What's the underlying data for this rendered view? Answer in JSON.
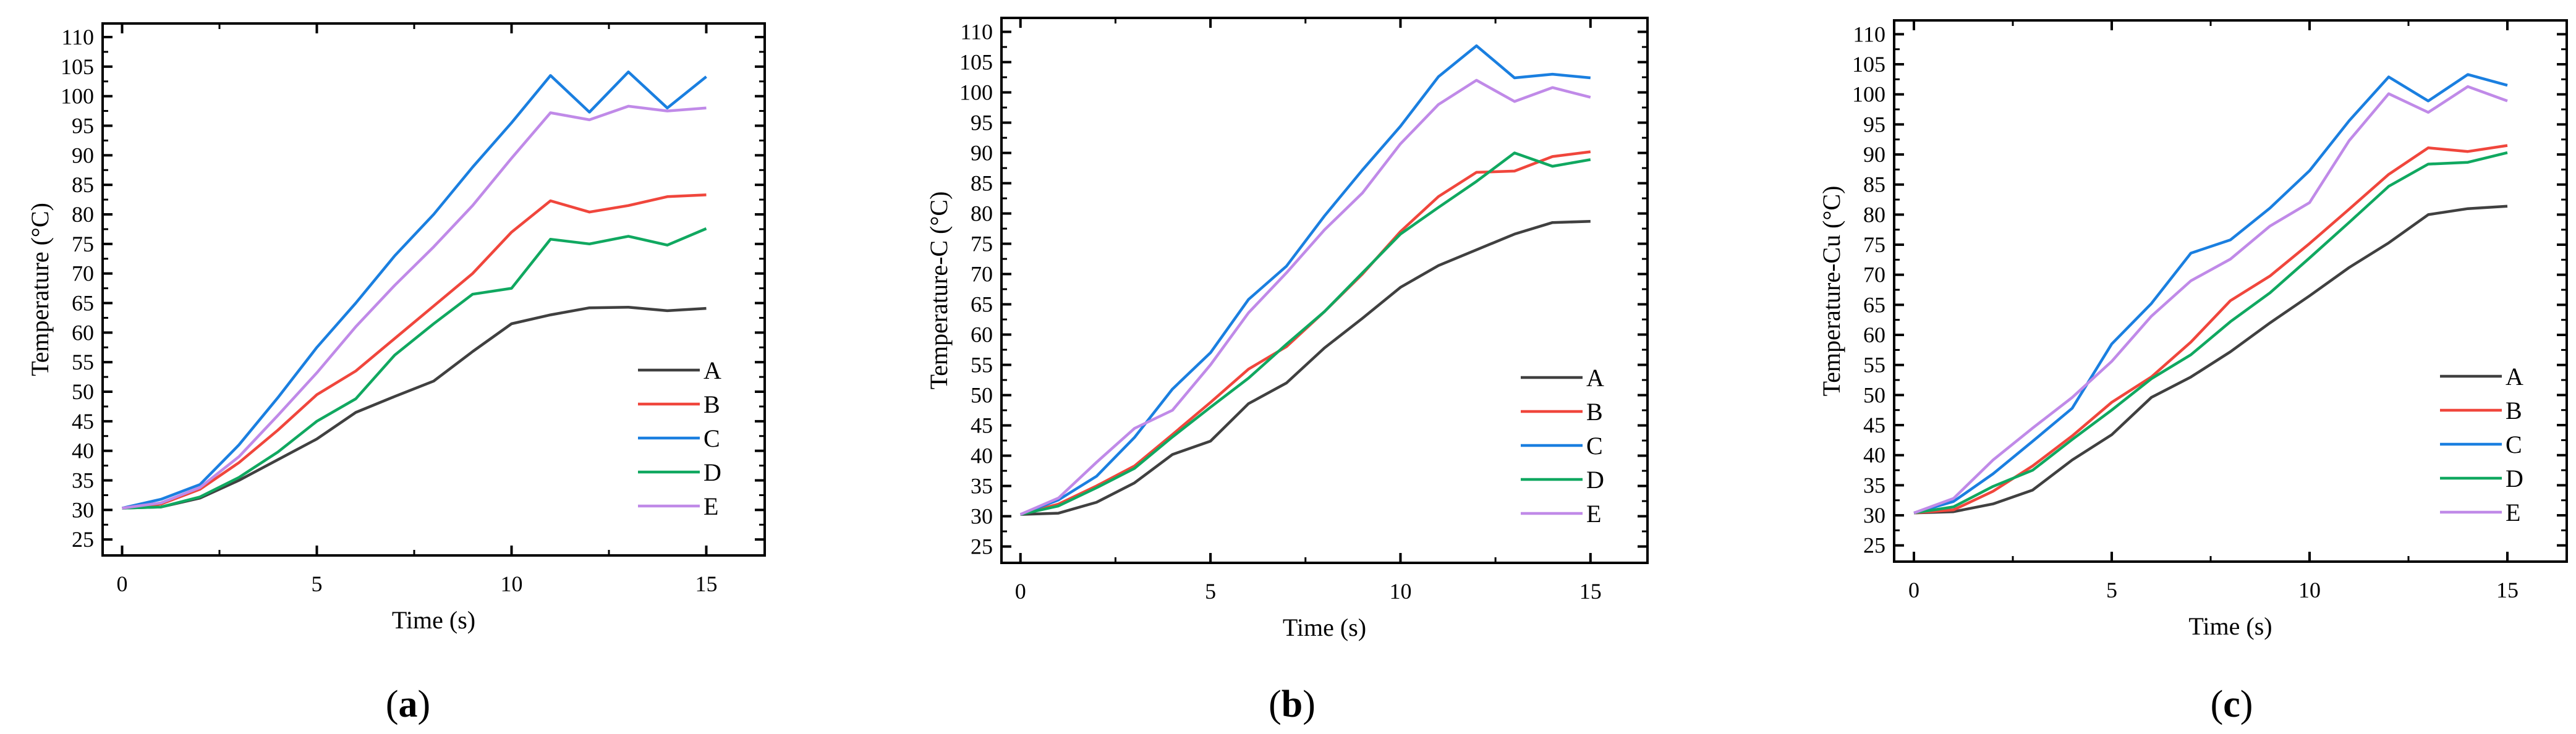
{
  "chart_data": [
    {
      "type": "line",
      "caption": "a",
      "xlabel": "Time (s)",
      "ylabel": "Temperature (°C)",
      "xlim": [
        -0.5,
        16.5
      ],
      "ylim": [
        22.3,
        112.3
      ],
      "xticks": [
        0,
        5,
        10,
        15
      ],
      "yticks": [
        25,
        30,
        35,
        40,
        45,
        50,
        55,
        60,
        65,
        70,
        75,
        80,
        85,
        90,
        95,
        100,
        105,
        110
      ],
      "legend": "bottom-right",
      "x": [
        0,
        1,
        2,
        3,
        4,
        5,
        6,
        7,
        8,
        9,
        10,
        11,
        12,
        13,
        14,
        15
      ],
      "series": [
        {
          "name": "A",
          "color": "#404040",
          "values": [
            30.3,
            30.5,
            32,
            35,
            38.5,
            42,
            46.5,
            49.2,
            51.8,
            56.8,
            61.5,
            63,
            64.2,
            64.3,
            63.7,
            64.1
          ]
        },
        {
          "name": "B",
          "color": "#f0463c",
          "values": [
            30.3,
            31,
            33.5,
            38,
            43.5,
            49.5,
            53.5,
            59,
            64.5,
            70,
            77,
            82.3,
            80.4,
            81.5,
            83,
            83.3
          ]
        },
        {
          "name": "C",
          "color": "#1a7fe0",
          "values": [
            30.3,
            31.8,
            34.3,
            41,
            49,
            57.5,
            65,
            73,
            80,
            88,
            95.5,
            103.5,
            97.3,
            104.1,
            98,
            103.3
          ]
        },
        {
          "name": "D",
          "color": "#10a860",
          "values": [
            30.3,
            30.5,
            32.2,
            35.5,
            39.8,
            45,
            48.8,
            56.2,
            61.5,
            66.5,
            67.5,
            75.8,
            75,
            76.3,
            74.8,
            77.6
          ]
        },
        {
          "name": "E",
          "color": "#c08ae8",
          "values": [
            30.3,
            31.2,
            33.8,
            39,
            46,
            53.2,
            61,
            68,
            74.5,
            81.5,
            89.5,
            97.2,
            96,
            98.3,
            97.5,
            98
          ]
        }
      ]
    },
    {
      "type": "line",
      "caption": "b",
      "xlabel": "Time (s)",
      "ylabel": "Temperature-C (°C)",
      "xlim": [
        -0.5,
        16.5
      ],
      "ylim": [
        22.3,
        112.3
      ],
      "xticks": [
        0,
        5,
        10,
        15
      ],
      "yticks": [
        25,
        30,
        35,
        40,
        45,
        50,
        55,
        60,
        65,
        70,
        75,
        80,
        85,
        90,
        95,
        100,
        105,
        110
      ],
      "legend": "bottom-right",
      "x": [
        0,
        1,
        2,
        3,
        4,
        5,
        6,
        7,
        8,
        9,
        10,
        11,
        12,
        13,
        14,
        15
      ],
      "series": [
        {
          "name": "A",
          "color": "#404040",
          "values": [
            30.3,
            30.5,
            32.3,
            35.5,
            40.2,
            42.4,
            48.6,
            52,
            57.8,
            62.7,
            67.8,
            71.4,
            74,
            76.6,
            78.5,
            78.7
          ]
        },
        {
          "name": "B",
          "color": "#f0463c",
          "values": [
            30.3,
            32,
            35,
            38.3,
            43.5,
            48.8,
            54.3,
            58,
            63.8,
            70,
            77,
            82.8,
            86.8,
            87,
            89.4,
            90.2
          ]
        },
        {
          "name": "C",
          "color": "#1a7fe0",
          "values": [
            30.3,
            32.7,
            36.6,
            43,
            51,
            57,
            65.8,
            71.3,
            79.6,
            87.2,
            94.4,
            102.6,
            107.7,
            102.4,
            103,
            102.4
          ]
        },
        {
          "name": "D",
          "color": "#10a860",
          "values": [
            30.3,
            31.7,
            34.7,
            37.9,
            43.1,
            48,
            52.8,
            58.4,
            63.8,
            70.2,
            76.6,
            81,
            85.3,
            90,
            87.8,
            88.9
          ]
        },
        {
          "name": "E",
          "color": "#c08ae8",
          "values": [
            30.3,
            33,
            38.9,
            44.5,
            47.5,
            55,
            63.6,
            70.2,
            77.3,
            83.4,
            91.5,
            98,
            102,
            98.5,
            100.8,
            99.2
          ]
        }
      ]
    },
    {
      "type": "line",
      "caption": "c",
      "xlabel": "Time (s)",
      "ylabel": "Temperature-Cu (°C)",
      "xlim": [
        -0.5,
        16.5
      ],
      "ylim": [
        22.3,
        112.3
      ],
      "xticks": [
        0,
        5,
        10,
        15
      ],
      "yticks": [
        25,
        30,
        35,
        40,
        45,
        50,
        55,
        60,
        65,
        70,
        75,
        80,
        85,
        90,
        95,
        100,
        105,
        110
      ],
      "legend": "bottom-right",
      "x": [
        0,
        1,
        2,
        3,
        4,
        5,
        6,
        7,
        8,
        9,
        10,
        11,
        12,
        13,
        14,
        15
      ],
      "series": [
        {
          "name": "A",
          "color": "#404040",
          "values": [
            30.4,
            30.6,
            31.9,
            34.2,
            39.2,
            43.4,
            49.6,
            53,
            57.2,
            62,
            66.5,
            71.2,
            75.3,
            80,
            81,
            81.4
          ]
        },
        {
          "name": "B",
          "color": "#f0463c",
          "values": [
            30.4,
            30.9,
            34,
            38.2,
            43.2,
            48.8,
            53,
            58.8,
            65.7,
            69.8,
            75.2,
            80.9,
            86.7,
            91.1,
            90.5,
            91.5
          ]
        },
        {
          "name": "C",
          "color": "#1a7fe0",
          "values": [
            30.4,
            32.3,
            36.9,
            42.3,
            47.8,
            58.5,
            65.2,
            73.6,
            75.8,
            81.1,
            87.3,
            95.6,
            102.9,
            98.9,
            103.3,
            101.5
          ]
        },
        {
          "name": "D",
          "color": "#10a860",
          "values": [
            30.4,
            31.4,
            34.8,
            37.5,
            42.6,
            47.5,
            52.7,
            56.7,
            62.2,
            67,
            72.8,
            78.7,
            84.7,
            88.4,
            88.7,
            90.3
          ]
        },
        {
          "name": "E",
          "color": "#c08ae8",
          "values": [
            30.4,
            32.8,
            39.2,
            44.5,
            49.6,
            55.6,
            63.1,
            69,
            72.6,
            78.1,
            82,
            92.3,
            100.1,
            97,
            101.3,
            98.9
          ]
        }
      ]
    }
  ]
}
